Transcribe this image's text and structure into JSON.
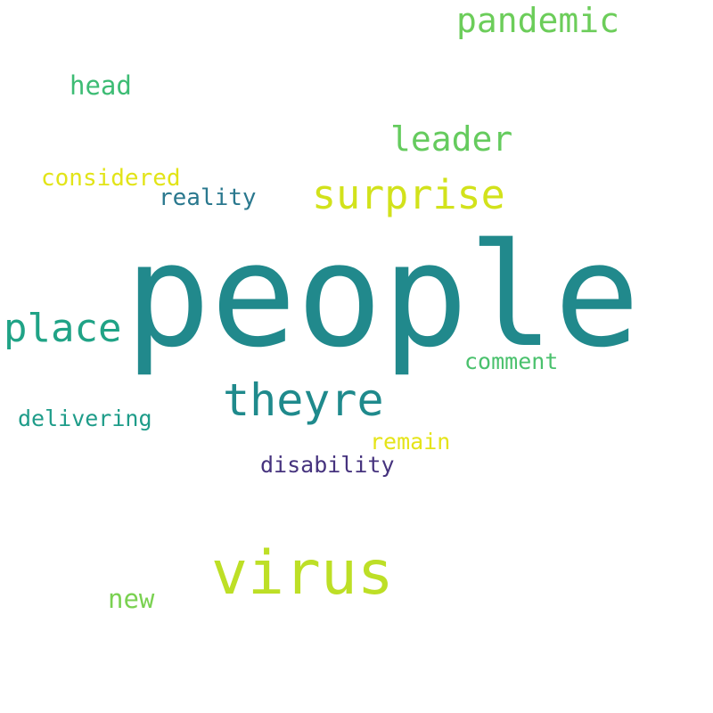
{
  "words": [
    {
      "text": "people",
      "color": "#21898c"
    },
    {
      "text": "virus",
      "color": "#bddf26"
    },
    {
      "text": "surprise",
      "color": "#d2e21b"
    },
    {
      "text": "theyre",
      "color": "#1f8a8c"
    },
    {
      "text": "place",
      "color": "#20a386"
    },
    {
      "text": "pandemic",
      "color": "#6ccd5a"
    },
    {
      "text": "leader",
      "color": "#65cb5e"
    },
    {
      "text": "head",
      "color": "#3dbc74"
    },
    {
      "text": "considered",
      "color": "#e2e418"
    },
    {
      "text": "reality",
      "color": "#2a788e"
    },
    {
      "text": "comment",
      "color": "#4ac16d"
    },
    {
      "text": "delivering",
      "color": "#1e9c89"
    },
    {
      "text": "remain",
      "color": "#e5e419"
    },
    {
      "text": "disability",
      "color": "#46337e"
    },
    {
      "text": "new",
      "color": "#7ad151"
    }
  ]
}
